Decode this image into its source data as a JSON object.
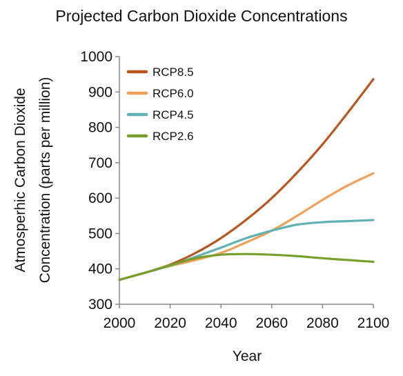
{
  "chart_data": {
    "type": "line",
    "title": "Projected Carbon Dioxide Concentrations",
    "xlabel": "Year",
    "ylabel_lines": [
      "Atmosperhic Carbon Dioxide",
      "Concentration (parts per million)"
    ],
    "xlim": [
      2000,
      2100
    ],
    "ylim": [
      300,
      1000
    ],
    "xticks": [
      2000,
      2020,
      2040,
      2060,
      2080,
      2100
    ],
    "yticks": [
      300,
      400,
      500,
      600,
      700,
      800,
      900,
      1000
    ],
    "grid": false,
    "legend_position": "top-left",
    "series": [
      {
        "name": "RCP8.5",
        "color": "#b8561e",
        "x": [
          2000,
          2010,
          2020,
          2030,
          2040,
          2050,
          2060,
          2070,
          2080,
          2090,
          2100
        ],
        "y": [
          369,
          389,
          412,
          445,
          487,
          539,
          600,
          672,
          752,
          842,
          936
        ]
      },
      {
        "name": "RCP6.0",
        "color": "#f2a057",
        "x": [
          2000,
          2010,
          2020,
          2030,
          2040,
          2050,
          2060,
          2070,
          2080,
          2090,
          2100
        ],
        "y": [
          369,
          389,
          408,
          425,
          445,
          475,
          508,
          550,
          595,
          636,
          670
        ]
      },
      {
        "name": "RCP4.5",
        "color": "#5fb1b3",
        "x": [
          2000,
          2010,
          2020,
          2030,
          2040,
          2050,
          2060,
          2070,
          2080,
          2090,
          2100
        ],
        "y": [
          369,
          389,
          409,
          434,
          460,
          487,
          508,
          525,
          532,
          535,
          538
        ]
      },
      {
        "name": "RCP2.6",
        "color": "#77a02a",
        "x": [
          2000,
          2010,
          2020,
          2030,
          2040,
          2050,
          2060,
          2070,
          2080,
          2090,
          2100
        ],
        "y": [
          369,
          389,
          410,
          430,
          440,
          442,
          440,
          436,
          430,
          425,
          420
        ]
      }
    ]
  }
}
